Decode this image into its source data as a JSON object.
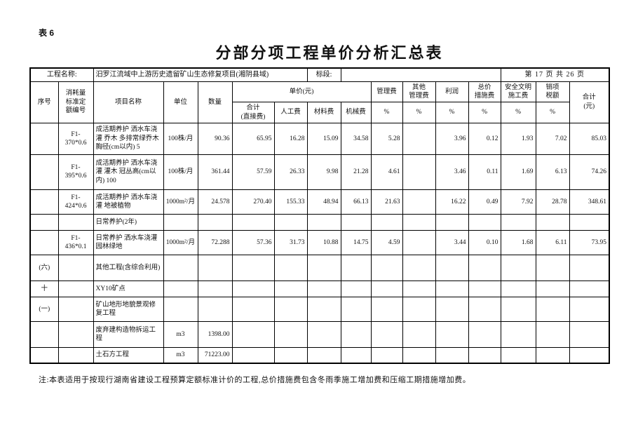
{
  "page": {
    "tag": "表 6",
    "title": "分部分项工程单价分析汇总表",
    "note": "注:本表适用于按现行湖南省建设工程预算定额标准计价的工程,总价措施费包含冬雨季施工增加费和压缩工期措施增加费。"
  },
  "info": {
    "project_label": "工程名称:",
    "project_value": "汨罗江流域中上游历史遗留矿山生态修复项目(湘阴县域)",
    "section_label": "标段:",
    "section_value": "",
    "page_info": "第 17 页 共 26 页"
  },
  "header": {
    "seq": "序号",
    "quota_no": "消耗量\n标准定\n额编号",
    "item_name": "项目名称",
    "unit": "单位",
    "quantity": "数量",
    "unit_price_group": "单价(元)",
    "direct_total": "合计\n(直接费)",
    "labor": "人工费",
    "material": "材料费",
    "machine": "机械费",
    "management": "管理费",
    "other_management": "其他\n管理费",
    "profit": "利润",
    "lump_measure": "总价\n措施费",
    "safety": "安全文明\n施工费",
    "tax": "销项\n税额",
    "total": "合计\n(元)",
    "percent": "%"
  },
  "table": {
    "rows": [
      {
        "seq": "",
        "no": "F1-\n370*0.6",
        "name": "成活期养护 洒水车浇灌 乔木 多排常绿乔木 胸径(cm以内) 5",
        "unit": "100株/月",
        "qty": "90.36",
        "direct": "65.95",
        "labor": "16.28",
        "material": "15.09",
        "machine": "34.58",
        "mgmt": "5.28",
        "other": "",
        "profit": "3.96",
        "measure": "0.12",
        "safety": "1.93",
        "tax": "7.02",
        "total": "85.03"
      },
      {
        "seq": "",
        "no": "F1-\n395*0.6",
        "name": "成活期养护 洒水车浇灌 灌木 冠丛高(cm以内) 100",
        "unit": "100株/月",
        "qty": "361.44",
        "direct": "57.59",
        "labor": "26.33",
        "material": "9.98",
        "machine": "21.28",
        "mgmt": "4.61",
        "other": "",
        "profit": "3.46",
        "measure": "0.11",
        "safety": "1.69",
        "tax": "6.13",
        "total": "74.26"
      },
      {
        "seq": "",
        "no": "F1-\n424*0.6",
        "name": "成活期养护 洒水车浇灌 地被植物",
        "unit": "1000m²/月",
        "qty": "24.578",
        "direct": "270.40",
        "labor": "155.33",
        "material": "48.94",
        "machine": "66.13",
        "mgmt": "21.63",
        "other": "",
        "profit": "16.22",
        "measure": "0.49",
        "safety": "7.92",
        "tax": "28.78",
        "total": "348.61"
      },
      {
        "seq": "",
        "no": "",
        "name": "日常养护(2年)",
        "unit": "",
        "qty": "",
        "direct": "",
        "labor": "",
        "material": "",
        "machine": "",
        "mgmt": "",
        "other": "",
        "profit": "",
        "measure": "",
        "safety": "",
        "tax": "",
        "total": ""
      },
      {
        "seq": "",
        "no": "F1-\n436*0.1",
        "name": "日常养护 洒水车浇灌 园林绿地",
        "unit": "1000m²/月",
        "qty": "72.288",
        "direct": "57.36",
        "labor": "31.73",
        "material": "10.88",
        "machine": "14.75",
        "mgmt": "4.59",
        "other": "",
        "profit": "3.44",
        "measure": "0.10",
        "safety": "1.68",
        "tax": "6.11",
        "total": "73.95"
      },
      {
        "seq": "(六)",
        "no": "",
        "name": "其他工程(含综合利用)",
        "unit": "",
        "qty": "",
        "direct": "",
        "labor": "",
        "material": "",
        "machine": "",
        "mgmt": "",
        "other": "",
        "profit": "",
        "measure": "",
        "safety": "",
        "tax": "",
        "total": ""
      },
      {
        "seq": "十",
        "no": "",
        "name": "XY10矿点",
        "unit": "",
        "qty": "",
        "direct": "",
        "labor": "",
        "material": "",
        "machine": "",
        "mgmt": "",
        "other": "",
        "profit": "",
        "measure": "",
        "safety": "",
        "tax": "",
        "total": ""
      },
      {
        "seq": "(一)",
        "no": "",
        "name": "矿山地形地貌景观修复工程",
        "unit": "",
        "qty": "",
        "direct": "",
        "labor": "",
        "material": "",
        "machine": "",
        "mgmt": "",
        "other": "",
        "profit": "",
        "measure": "",
        "safety": "",
        "tax": "",
        "total": ""
      },
      {
        "seq": "",
        "no": "",
        "name": "废弃建构造物拆运工程",
        "unit": "m3",
        "qty": "1398.00",
        "direct": "",
        "labor": "",
        "material": "",
        "machine": "",
        "mgmt": "",
        "other": "",
        "profit": "",
        "measure": "",
        "safety": "",
        "tax": "",
        "total": ""
      },
      {
        "seq": "",
        "no": "",
        "name": "土石方工程",
        "unit": "m3",
        "qty": "71223.00",
        "direct": "",
        "labor": "",
        "material": "",
        "machine": "",
        "mgmt": "",
        "other": "",
        "profit": "",
        "measure": "",
        "safety": "",
        "tax": "",
        "total": ""
      }
    ]
  }
}
